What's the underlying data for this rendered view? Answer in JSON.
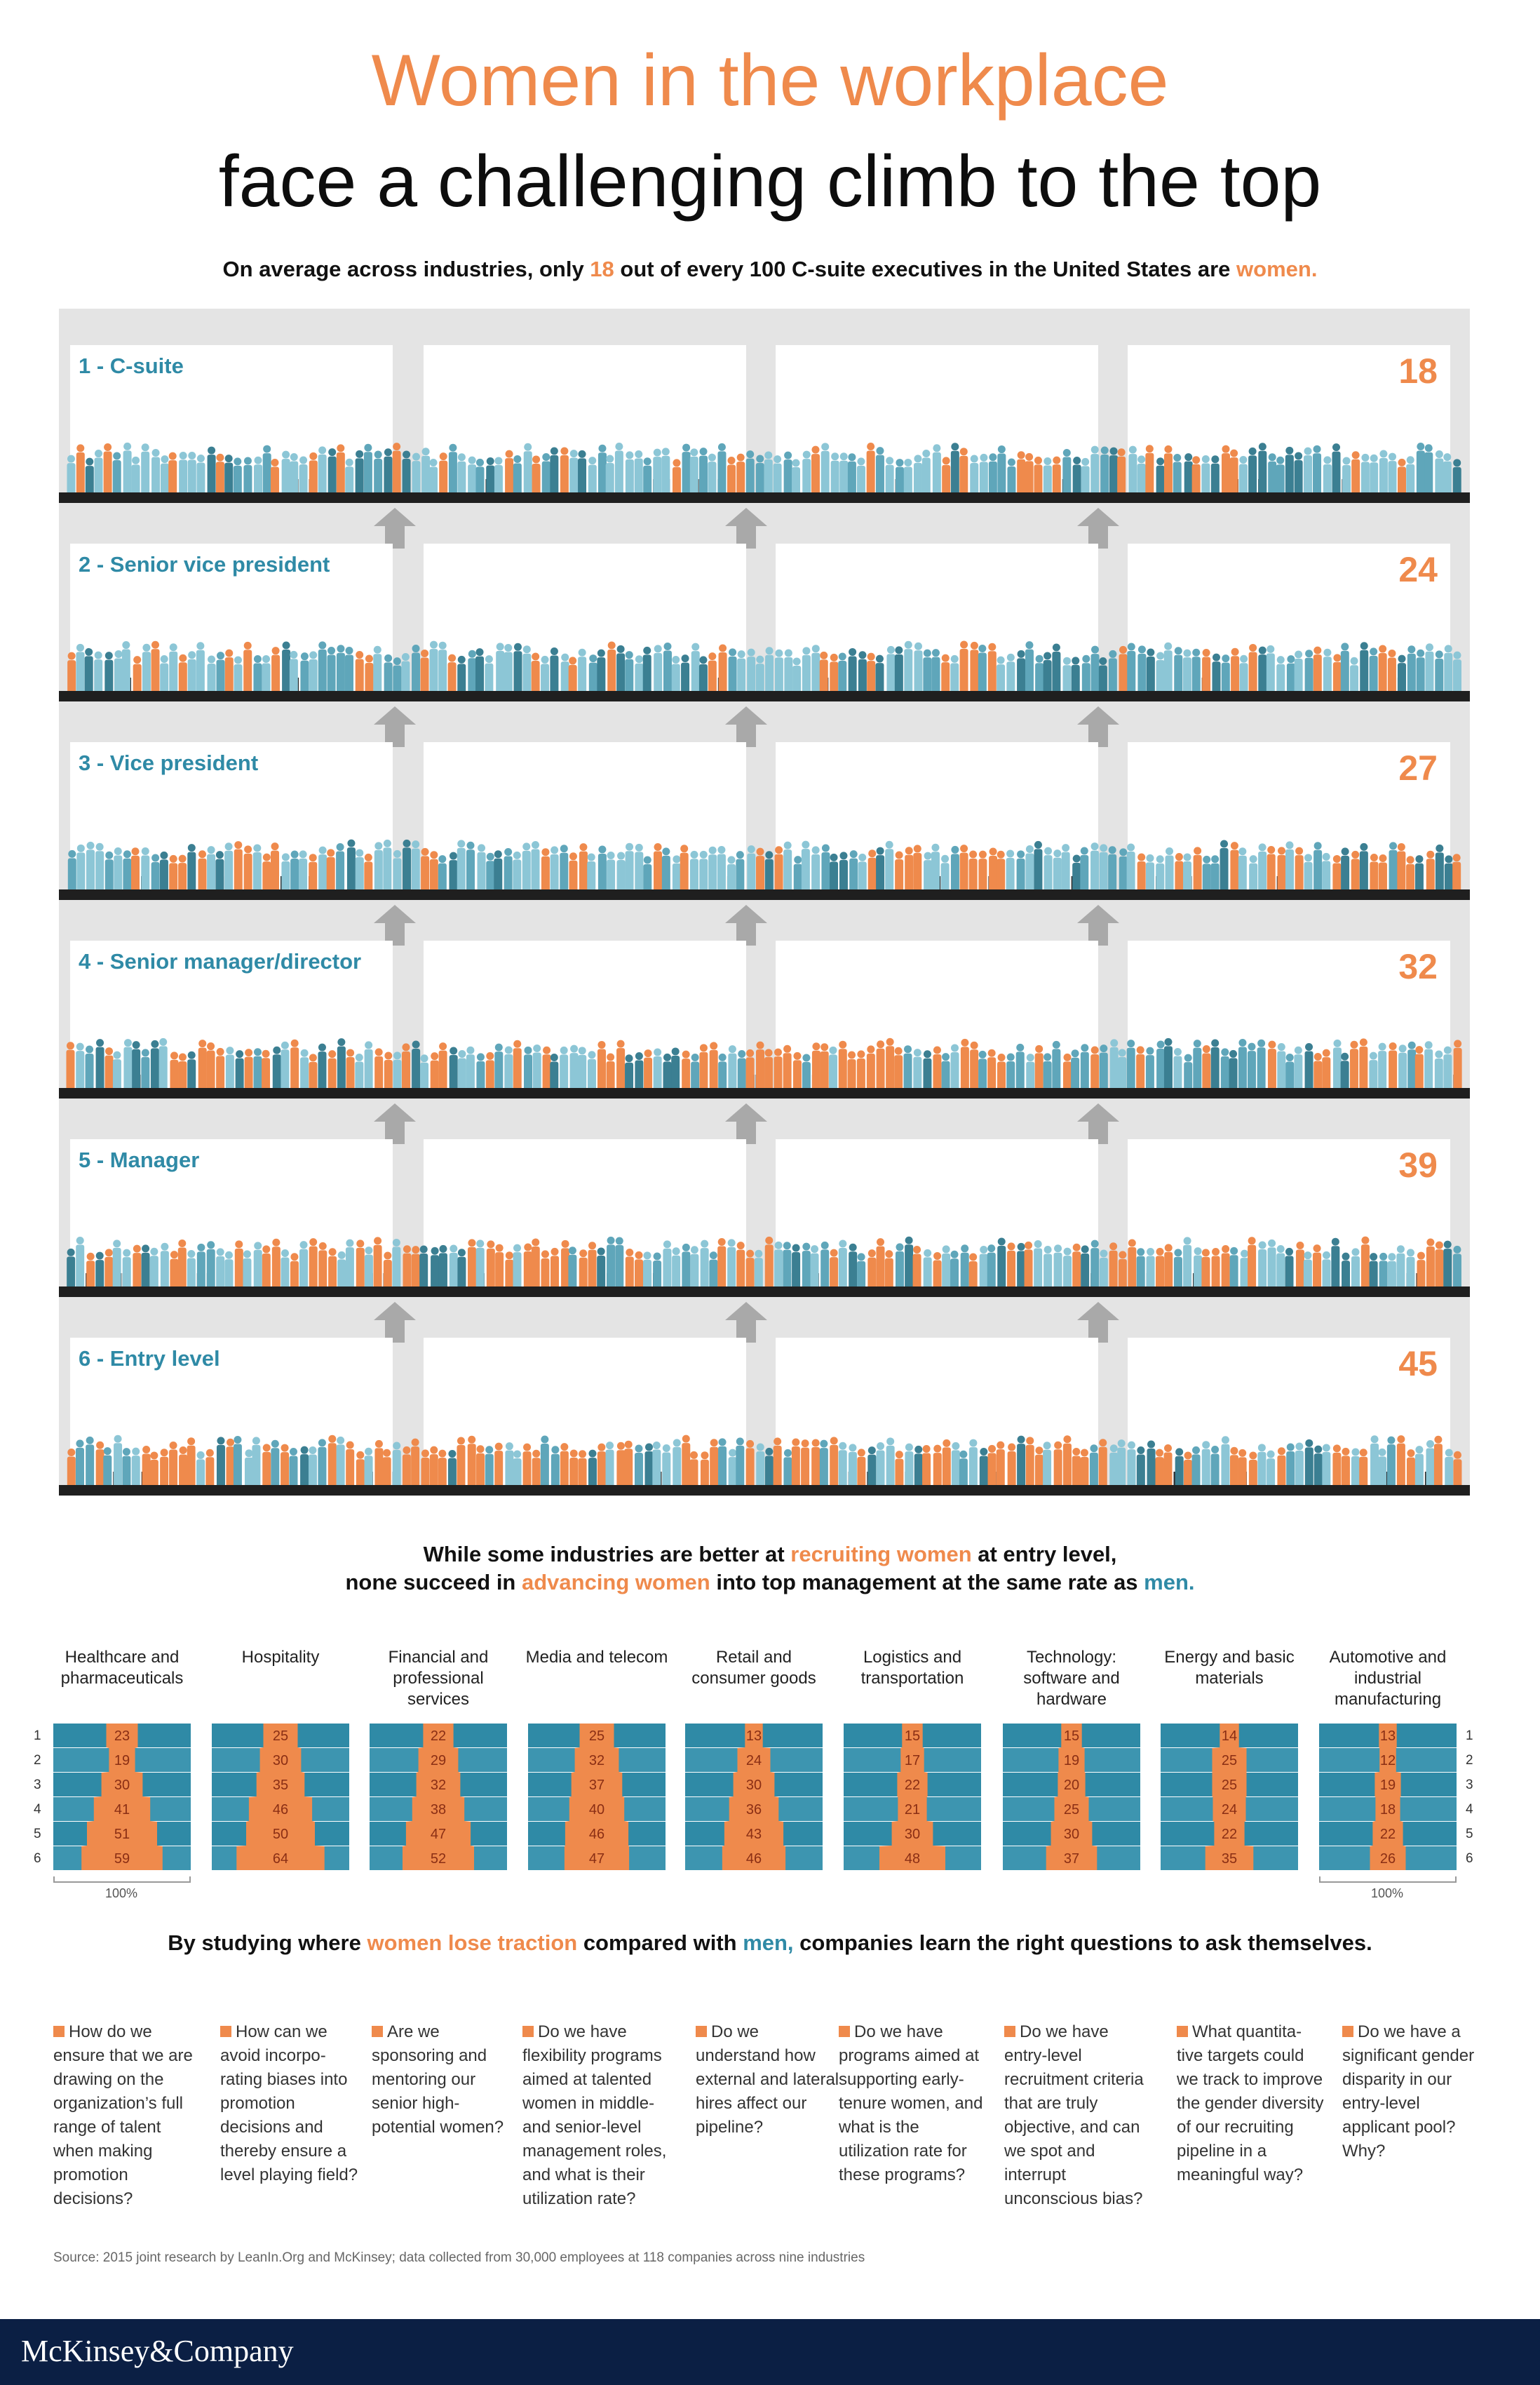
{
  "title_line1": "Women in the workplace",
  "title_line2": "face a challenging climb to the top",
  "subtitle": {
    "part1": "On average across industries, only ",
    "number": "18",
    "part2": " out of every 100 C-suite executives in the United States are ",
    "emph": "women."
  },
  "colors": {
    "orange": "#ef8a4c",
    "teal": "#2f8aa6",
    "light_teal": "#8cc6d6",
    "dark_teal": "#3b7f92"
  },
  "chart_data": [
    {
      "type": "bar",
      "title": "",
      "categories": [
        "1 - C-suite",
        "2 - Senior vice president",
        "3 - Vice president",
        "4 - Senior manager/director",
        "5 - Manager",
        "6 - Entry level"
      ],
      "values": [
        18,
        24,
        27,
        32,
        39,
        45
      ]
    },
    {
      "type": "bar",
      "row_labels": [
        "1",
        "2",
        "3",
        "4",
        "5",
        "6"
      ],
      "axis_note": "100%",
      "industries": [
        {
          "name": "Healthcare and pharmaceuticals",
          "values": [
            23,
            19,
            30,
            41,
            51,
            59
          ]
        },
        {
          "name": "Hospitality",
          "values": [
            25,
            30,
            35,
            46,
            50,
            64
          ]
        },
        {
          "name": "Financial and professional services",
          "values": [
            22,
            29,
            32,
            38,
            47,
            52
          ]
        },
        {
          "name": "Media and telecom",
          "values": [
            25,
            32,
            37,
            40,
            46,
            47
          ]
        },
        {
          "name": "Retail and consumer goods",
          "values": [
            13,
            24,
            30,
            36,
            43,
            46
          ]
        },
        {
          "name": "Logistics and transportation",
          "values": [
            15,
            17,
            22,
            21,
            30,
            48
          ]
        },
        {
          "name": "Technology: software and hardware",
          "values": [
            15,
            19,
            20,
            25,
            30,
            37
          ]
        },
        {
          "name": "Energy and basic materials",
          "values": [
            14,
            25,
            25,
            24,
            22,
            35
          ]
        },
        {
          "name": "Automotive and industrial manufacturing",
          "values": [
            13,
            12,
            19,
            18,
            22,
            26
          ]
        }
      ]
    }
  ],
  "middle": {
    "line1_a": "While some industries are better at ",
    "line1_b": "recruiting women",
    "line1_c": " at entry level,",
    "line2_a": "none succeed in ",
    "line2_b": "advancing women",
    "line2_c": " into top management at the same rate as ",
    "line2_d": "men."
  },
  "bottom": {
    "a": "By studying where ",
    "b": "women lose traction",
    "c": " compared with ",
    "d": "men,",
    "e": " companies learn the right questions to ask themselves."
  },
  "questions": [
    "How do we ensure that we are drawing on the organization’s full range of talent when making promotion decisions?",
    "How can we avoid incorpo-rating biases into promotion decisions and thereby ensure a level playing field?",
    "Are we sponsoring and mentoring our senior high-potential women?",
    "Do we have flexibility programs aimed at talented women in middle- and senior-level management roles, and what is their utilization rate?",
    "Do we understand how external and lateral hires affect our pipeline?",
    "Do we have programs aimed at supporting early-tenure women, and what is the utilization rate for these programs?",
    "Do we have entry-level recruitment criteria that are truly objective, and can we spot and interrupt unconscious bias?",
    "What quantita-tive targets could we track to improve the gender diversity of our recruiting pipeline in a meaningful way?",
    "Do we have a significant gender disparity in our entry-level applicant pool? Why?"
  ],
  "source": "Source: 2015 joint research by LeanIn.Org and McKinsey; data collected from 30,000 employees at 118 companies across nine industries",
  "logo": "McKinsey&Company"
}
